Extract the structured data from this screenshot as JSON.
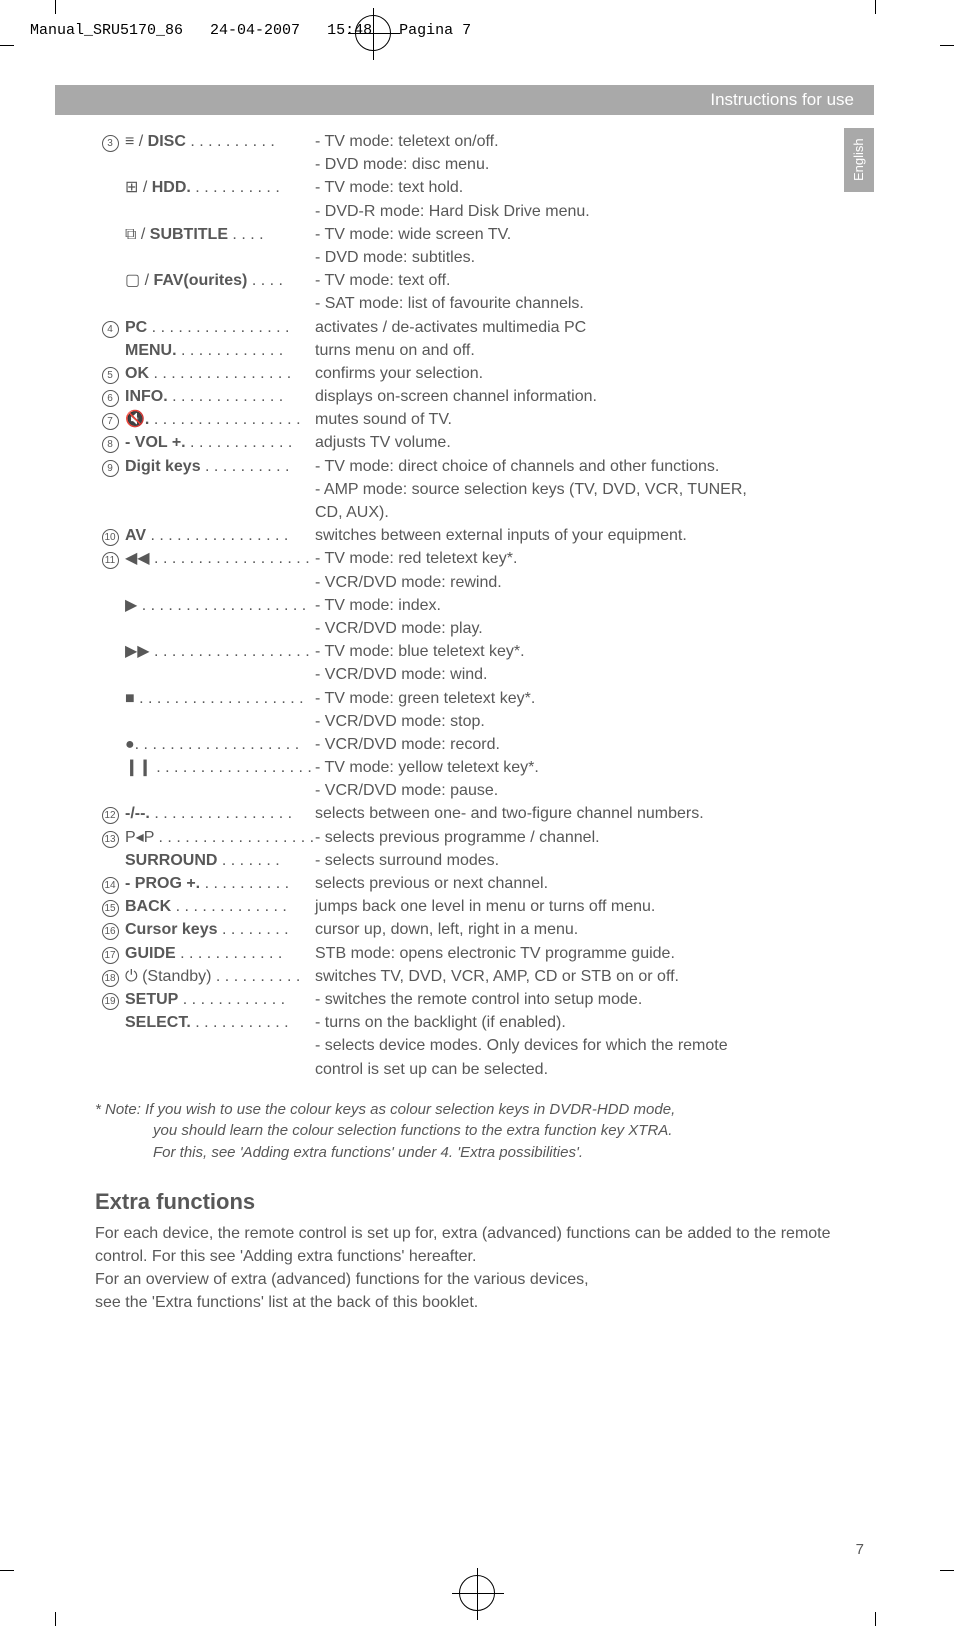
{
  "header_filename": "Manual_SRU5170_86",
  "header_date": "24-04-2007",
  "header_time": "15:48",
  "header_page": "Pagina 7",
  "section_title": "Instructions for use",
  "side_tab": "English",
  "page_number": "7",
  "rows": [
    {
      "n": "3",
      "label": "≡ / DISC",
      "dots": " . . . . . . . . . . ",
      "desc": "- TV mode: teletext on/off."
    },
    {
      "cont": true,
      "desc": "- DVD mode: disc menu."
    },
    {
      "label": "⊞ / HDD.",
      "dots": " . . . . . . . . . . ",
      "desc": "- TV mode: text hold."
    },
    {
      "cont": true,
      "desc": "- DVD-R mode: Hard Disk Drive menu."
    },
    {
      "label": "⧉ / SUBTITLE",
      "dots": " . . . . ",
      "desc": "- TV mode: wide screen TV."
    },
    {
      "cont": true,
      "desc": "- DVD mode: subtitles."
    },
    {
      "label": "▢ / FAV(ourites)",
      "dots": " . . . . ",
      "desc": "- TV mode: text off."
    },
    {
      "cont": true,
      "desc": "- SAT mode: list of favourite channels."
    },
    {
      "n": "4",
      "label": "PC",
      "dots": " . . . . . . . . . . . . . . . . ",
      "desc": "activates / de-activates multimedia PC"
    },
    {
      "label": "MENU.",
      "dots": " . . . . . . . . . . . . ",
      "desc": "turns menu on and off."
    },
    {
      "n": "5",
      "label": "OK",
      "dots": " . . . . . . . . . . . . . . . . ",
      "desc": "confirms your selection."
    },
    {
      "n": "6",
      "label": "INFO.",
      "dots": " . . . . . . . . . . . . . ",
      "desc": "displays on-screen channel information."
    },
    {
      "n": "7",
      "label": "🔇.",
      "dots": " . . . . . . . . . . . . . . . . . ",
      "desc": "mutes sound of TV."
    },
    {
      "n": "8",
      "label": "- VOL +.",
      "dots": " . . . . . . . . . . . . ",
      "desc": "adjusts TV volume."
    },
    {
      "n": "9",
      "label": "Digit keys",
      "dots": " . . . . . . . . . . ",
      "desc": "- TV mode: direct choice of channels and other functions."
    },
    {
      "cont": true,
      "desc": "- AMP mode: source selection keys (TV, DVD, VCR, TUNER,"
    },
    {
      "cont": true,
      "desc": "  CD, AUX)."
    },
    {
      "n": "10",
      "label": "AV",
      "dots": " . . . . . . . . . . . . . . . . ",
      "desc": "switches between external inputs of your equipment."
    },
    {
      "n": "11",
      "label": "◀◀",
      "dots": " . . . . . . . . . . . . . . . . . . ",
      "desc": "- TV mode: red teletext key*.",
      "plain": true
    },
    {
      "cont": true,
      "desc": "- VCR/DVD mode: rewind."
    },
    {
      "label": "▶",
      "dots": " . . . . . . . . . . . . . . . . . . . ",
      "desc": "- TV mode: index.",
      "plain": true
    },
    {
      "cont": true,
      "desc": "- VCR/DVD mode: play."
    },
    {
      "label": "▶▶",
      "dots": " . . . . . . . . . . . . . . . . . . ",
      "desc": "- TV mode: blue teletext key*.",
      "plain": true
    },
    {
      "cont": true,
      "desc": "- VCR/DVD mode: wind."
    },
    {
      "label": "■",
      "dots": " . . . . . . . . . . . . . . . . . . . ",
      "desc": "- TV mode: green teletext key*.",
      "plain": true
    },
    {
      "cont": true,
      "desc": "- VCR/DVD mode: stop."
    },
    {
      "label": "●.",
      "dots": " . . . . . . . . . . . . . . . . . . ",
      "desc": "- VCR/DVD mode: record.",
      "plain": true
    },
    {
      "label": "❙❙",
      "dots": " . . . . . . . . . . . . . . . . . . . ",
      "desc": "- TV mode: yellow teletext key*."
    },
    {
      "cont": true,
      "desc": "- VCR/DVD mode: pause."
    },
    {
      "n": "12",
      "label": "-/--.",
      "dots": " . . . . . . . . . . . . . . . . ",
      "desc": "selects between one- and two-figure channel numbers."
    },
    {
      "n": "13",
      "label": "P◂P .",
      "dots": " . . . . . . . . . . . . . . . . . ",
      "desc": "- selects previous programme / channel.",
      "plain": true
    },
    {
      "label": "SURROUND",
      "dots": " . . . . . . . ",
      "desc": "- selects surround modes."
    },
    {
      "n": "14",
      "label": "- PROG +.",
      "dots": " . . . . . . . . . . ",
      "desc": "selects previous or next channel."
    },
    {
      "n": "15",
      "label": "BACK",
      "dots": " . . . . . . . . . . . . . ",
      "desc": "jumps back one level in menu or turns off menu."
    },
    {
      "n": "16",
      "label": "Cursor keys",
      "dots": " . . . . . . . . ",
      "desc": "cursor up, down, left, right in a menu."
    },
    {
      "n": "17",
      "label": "GUIDE",
      "dots": " . . . . . . . . . . . . ",
      "desc": "STB mode: opens electronic TV programme guide."
    },
    {
      "n": "18",
      "label": "⏻ (Standby)",
      "dots": " . . . . . . . . . . ",
      "desc": "switches TV, DVD, VCR, AMP, CD or STB on or off.",
      "plainlabel": true
    },
    {
      "n": "19",
      "label": "SETUP",
      "dots": " . . . . . . . . . . . . ",
      "desc": "- switches the remote control into setup mode."
    },
    {
      "label": "SELECT.",
      "dots": " . . . . . . . . . . . ",
      "desc": "- turns on the backlight (if enabled)."
    },
    {
      "cont": true,
      "desc": "- selects device modes. Only devices for which the remote"
    },
    {
      "cont": true,
      "desc": "  control is set up can be selected."
    }
  ],
  "note_line1": "* Note: If you wish to use the colour keys as colour selection keys in DVDR-HDD mode,",
  "note_line2": "you should learn the colour selection functions to the extra function key XTRA.",
  "note_line3": "For this, see 'Adding extra functions' under 4. 'Extra possibilities'.",
  "extra_heading": "Extra functions",
  "extra_p1": "For each device, the remote control is set up for, extra (advanced) functions can be added to the remote control. For this see 'Adding extra functions' hereafter.",
  "extra_p2": "For an overview of extra (advanced) functions for the various devices,",
  "extra_p3": "see the 'Extra functions' list at the back of this booklet."
}
